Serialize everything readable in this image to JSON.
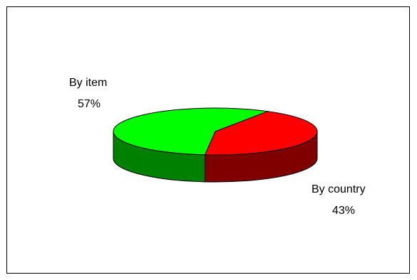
{
  "chart_data": {
    "type": "pie",
    "style": "3d",
    "title": "",
    "slices": [
      {
        "label": "By item",
        "percent_label": "57%",
        "value": 57,
        "colors": {
          "top": "#00ff00",
          "side": "#008000"
        }
      },
      {
        "label": "By country",
        "percent_label": "43%",
        "value": 43,
        "colors": {
          "top": "#ff0000",
          "side": "#800000"
        }
      }
    ],
    "legend": "none",
    "data_labels": "outside"
  }
}
